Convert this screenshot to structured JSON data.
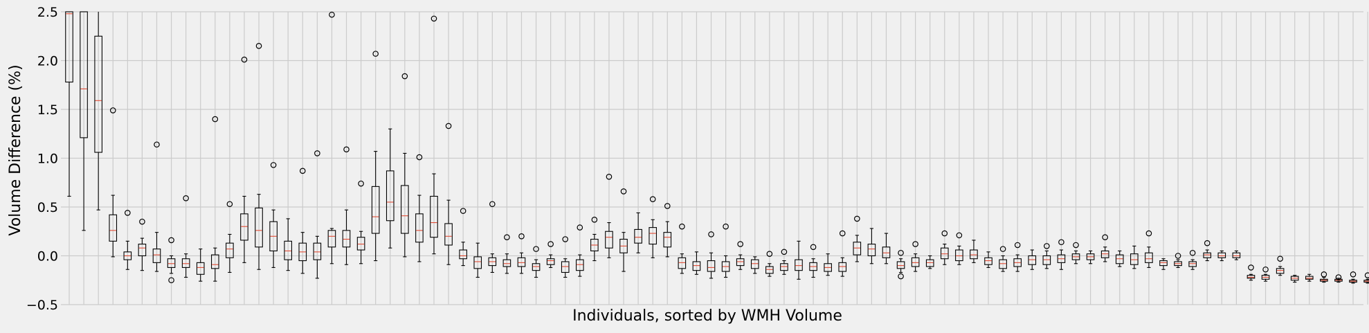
{
  "chart_data": {
    "type": "boxplot",
    "title": "",
    "xlabel": "Individuals, sorted by WMH Volume",
    "ylabel": "Volume Difference (%)",
    "ylim": [
      -0.5,
      2.5
    ],
    "yticks": [
      -0.5,
      0.0,
      0.5,
      1.0,
      1.5,
      2.0,
      2.5
    ],
    "ytick_labels": [
      "−0.5",
      "0.0",
      "0.5",
      "1.0",
      "1.5",
      "2.0",
      "2.5"
    ],
    "grid": true,
    "xtick_labels_shown": false,
    "colors": {
      "background": "#f0f0f0",
      "grid": "#cbcbcb",
      "box": "#000000",
      "median": "#e24a33"
    },
    "boxes": [
      {
        "q1": 1.78,
        "med": 2.48,
        "q3": 2.6,
        "wlo": 0.61,
        "whi": 2.6,
        "fl": []
      },
      {
        "q1": 1.21,
        "med": 1.71,
        "q3": 2.6,
        "wlo": 0.26,
        "whi": 2.6,
        "fl": []
      },
      {
        "q1": 1.06,
        "med": 1.59,
        "q3": 2.25,
        "wlo": 0.47,
        "whi": 2.6,
        "fl": []
      },
      {
        "q1": 0.15,
        "med": 0.26,
        "q3": 0.42,
        "wlo": -0.01,
        "whi": 0.62,
        "fl": [
          1.49
        ]
      },
      {
        "q1": -0.04,
        "med": 0.0,
        "q3": 0.04,
        "wlo": -0.14,
        "whi": 0.15,
        "fl": [
          0.44
        ]
      },
      {
        "q1": 0.0,
        "med": 0.08,
        "q3": 0.12,
        "wlo": -0.15,
        "whi": 0.18,
        "fl": [
          0.35
        ]
      },
      {
        "q1": -0.07,
        "med": 0.01,
        "q3": 0.07,
        "wlo": -0.16,
        "whi": 0.24,
        "fl": [
          1.14
        ]
      },
      {
        "q1": -0.12,
        "med": -0.08,
        "q3": -0.03,
        "wlo": -0.18,
        "whi": 0.0,
        "fl": [
          0.16,
          -0.25
        ]
      },
      {
        "q1": -0.12,
        "med": -0.08,
        "q3": -0.03,
        "wlo": -0.22,
        "whi": 0.02,
        "fl": [
          0.59
        ]
      },
      {
        "q1": -0.19,
        "med": -0.12,
        "q3": -0.07,
        "wlo": -0.26,
        "whi": 0.07,
        "fl": []
      },
      {
        "q1": -0.13,
        "med": -0.09,
        "q3": 0.01,
        "wlo": -0.26,
        "whi": 0.08,
        "fl": [
          1.4
        ]
      },
      {
        "q1": -0.02,
        "med": 0.07,
        "q3": 0.13,
        "wlo": -0.17,
        "whi": 0.22,
        "fl": [
          0.53
        ]
      },
      {
        "q1": 0.16,
        "med": 0.3,
        "q3": 0.43,
        "wlo": -0.07,
        "whi": 0.61,
        "fl": [
          2.01
        ]
      },
      {
        "q1": 0.09,
        "med": 0.26,
        "q3": 0.49,
        "wlo": -0.14,
        "whi": 0.63,
        "fl": [
          2.15
        ]
      },
      {
        "q1": 0.05,
        "med": 0.2,
        "q3": 0.35,
        "wlo": -0.12,
        "whi": 0.47,
        "fl": [
          0.93
        ]
      },
      {
        "q1": -0.04,
        "med": 0.05,
        "q3": 0.15,
        "wlo": -0.15,
        "whi": 0.38,
        "fl": []
      },
      {
        "q1": -0.05,
        "med": 0.04,
        "q3": 0.13,
        "wlo": -0.18,
        "whi": 0.24,
        "fl": [
          0.87
        ]
      },
      {
        "q1": -0.04,
        "med": 0.04,
        "q3": 0.13,
        "wlo": -0.23,
        "whi": 0.2,
        "fl": [
          1.05
        ]
      },
      {
        "q1": 0.09,
        "med": 0.2,
        "q3": 0.26,
        "wlo": -0.08,
        "whi": 0.28,
        "fl": [
          2.47
        ]
      },
      {
        "q1": 0.09,
        "med": 0.17,
        "q3": 0.26,
        "wlo": -0.09,
        "whi": 0.47,
        "fl": [
          1.09
        ]
      },
      {
        "q1": 0.06,
        "med": 0.12,
        "q3": 0.19,
        "wlo": -0.08,
        "whi": 0.25,
        "fl": [
          0.74
        ]
      },
      {
        "q1": 0.23,
        "med": 0.4,
        "q3": 0.71,
        "wlo": -0.05,
        "whi": 1.07,
        "fl": [
          2.07
        ]
      },
      {
        "q1": 0.36,
        "med": 0.55,
        "q3": 0.87,
        "wlo": 0.08,
        "whi": 1.3,
        "fl": []
      },
      {
        "q1": 0.23,
        "med": 0.41,
        "q3": 0.72,
        "wlo": -0.01,
        "whi": 1.05,
        "fl": [
          1.84
        ]
      },
      {
        "q1": 0.14,
        "med": 0.26,
        "q3": 0.43,
        "wlo": -0.06,
        "whi": 0.62,
        "fl": [
          1.01
        ]
      },
      {
        "q1": 0.19,
        "med": 0.34,
        "q3": 0.61,
        "wlo": 0.02,
        "whi": 0.84,
        "fl": [
          2.43
        ]
      },
      {
        "q1": 0.11,
        "med": 0.2,
        "q3": 0.33,
        "wlo": -0.09,
        "whi": 0.57,
        "fl": [
          1.33
        ]
      },
      {
        "q1": -0.03,
        "med": 0.0,
        "q3": 0.06,
        "wlo": -0.1,
        "whi": 0.14,
        "fl": [
          0.46
        ]
      },
      {
        "q1": -0.13,
        "med": -0.06,
        "q3": -0.01,
        "wlo": -0.22,
        "whi": 0.13,
        "fl": []
      },
      {
        "q1": -0.1,
        "med": -0.06,
        "q3": -0.02,
        "wlo": -0.17,
        "whi": 0.02,
        "fl": [
          0.53
        ]
      },
      {
        "q1": -0.11,
        "med": -0.08,
        "q3": -0.04,
        "wlo": -0.18,
        "whi": 0.02,
        "fl": [
          0.19
        ]
      },
      {
        "q1": -0.11,
        "med": -0.07,
        "q3": -0.02,
        "wlo": -0.18,
        "whi": 0.03,
        "fl": [
          0.2
        ]
      },
      {
        "q1": -0.15,
        "med": -0.11,
        "q3": -0.08,
        "wlo": -0.22,
        "whi": -0.04,
        "fl": [
          0.07
        ]
      },
      {
        "q1": -0.09,
        "med": -0.05,
        "q3": -0.03,
        "wlo": -0.12,
        "whi": 0.01,
        "fl": [
          0.12
        ]
      },
      {
        "q1": -0.17,
        "med": -0.11,
        "q3": -0.06,
        "wlo": -0.22,
        "whi": -0.03,
        "fl": [
          0.17
        ]
      },
      {
        "q1": -0.15,
        "med": -0.09,
        "q3": -0.04,
        "wlo": -0.21,
        "whi": 0.01,
        "fl": [
          0.29
        ]
      },
      {
        "q1": 0.05,
        "med": 0.11,
        "q3": 0.17,
        "wlo": -0.05,
        "whi": 0.22,
        "fl": [
          0.37
        ]
      },
      {
        "q1": 0.08,
        "med": 0.19,
        "q3": 0.25,
        "wlo": -0.02,
        "whi": 0.34,
        "fl": [
          0.81
        ]
      },
      {
        "q1": 0.03,
        "med": 0.1,
        "q3": 0.17,
        "wlo": -0.16,
        "whi": 0.24,
        "fl": [
          0.66
        ]
      },
      {
        "q1": 0.13,
        "med": 0.19,
        "q3": 0.27,
        "wlo": 0.03,
        "whi": 0.44,
        "fl": []
      },
      {
        "q1": 0.12,
        "med": 0.23,
        "q3": 0.29,
        "wlo": -0.02,
        "whi": 0.37,
        "fl": [
          0.58
        ]
      },
      {
        "q1": 0.09,
        "med": 0.19,
        "q3": 0.24,
        "wlo": -0.01,
        "whi": 0.35,
        "fl": [
          0.51
        ]
      },
      {
        "q1": -0.13,
        "med": -0.07,
        "q3": -0.02,
        "wlo": -0.18,
        "whi": 0.02,
        "fl": [
          0.3
        ]
      },
      {
        "q1": -0.15,
        "med": -0.1,
        "q3": -0.06,
        "wlo": -0.19,
        "whi": 0.04,
        "fl": []
      },
      {
        "q1": -0.16,
        "med": -0.12,
        "q3": -0.05,
        "wlo": -0.23,
        "whi": 0.03,
        "fl": [
          0.22
        ]
      },
      {
        "q1": -0.16,
        "med": -0.11,
        "q3": -0.06,
        "wlo": -0.22,
        "whi": 0.0,
        "fl": [
          0.3
        ]
      },
      {
        "q1": -0.1,
        "med": -0.06,
        "q3": -0.03,
        "wlo": -0.14,
        "whi": 0.01,
        "fl": [
          0.12
        ]
      },
      {
        "q1": -0.13,
        "med": -0.08,
        "q3": -0.04,
        "wlo": -0.18,
        "whi": -0.01,
        "fl": []
      },
      {
        "q1": -0.18,
        "med": -0.14,
        "q3": -0.11,
        "wlo": -0.21,
        "whi": -0.08,
        "fl": [
          0.02
        ]
      },
      {
        "q1": -0.15,
        "med": -0.11,
        "q3": -0.08,
        "wlo": -0.19,
        "whi": -0.05,
        "fl": [
          0.04
        ]
      },
      {
        "q1": -0.15,
        "med": -0.1,
        "q3": -0.04,
        "wlo": -0.24,
        "whi": 0.15,
        "fl": []
      },
      {
        "q1": -0.15,
        "med": -0.11,
        "q3": -0.07,
        "wlo": -0.22,
        "whi": -0.03,
        "fl": [
          0.09
        ]
      },
      {
        "q1": -0.16,
        "med": -0.12,
        "q3": -0.08,
        "wlo": -0.2,
        "whi": 0.02,
        "fl": []
      },
      {
        "q1": -0.16,
        "med": -0.11,
        "q3": -0.07,
        "wlo": -0.21,
        "whi": -0.02,
        "fl": [
          0.23
        ]
      },
      {
        "q1": 0.01,
        "med": 0.08,
        "q3": 0.14,
        "wlo": -0.06,
        "whi": 0.21,
        "fl": [
          0.38
        ]
      },
      {
        "q1": 0.0,
        "med": 0.07,
        "q3": 0.12,
        "wlo": -0.08,
        "whi": 0.28,
        "fl": []
      },
      {
        "q1": -0.02,
        "med": 0.03,
        "q3": 0.09,
        "wlo": -0.08,
        "whi": 0.23,
        "fl": []
      },
      {
        "q1": -0.13,
        "med": -0.1,
        "q3": -0.06,
        "wlo": -0.17,
        "whi": -0.03,
        "fl": [
          0.03,
          -0.21
        ]
      },
      {
        "q1": -0.11,
        "med": -0.07,
        "q3": -0.02,
        "wlo": -0.16,
        "whi": 0.02,
        "fl": [
          0.12
        ]
      },
      {
        "q1": -0.11,
        "med": -0.07,
        "q3": -0.04,
        "wlo": -0.13,
        "whi": 0.0,
        "fl": []
      },
      {
        "q1": -0.03,
        "med": 0.02,
        "q3": 0.08,
        "wlo": -0.09,
        "whi": 0.12,
        "fl": [
          0.23
        ]
      },
      {
        "q1": -0.05,
        "med": 0.0,
        "q3": 0.06,
        "wlo": -0.09,
        "whi": 0.1,
        "fl": [
          0.21
        ]
      },
      {
        "q1": -0.03,
        "med": 0.01,
        "q3": 0.06,
        "wlo": -0.07,
        "whi": 0.16,
        "fl": []
      },
      {
        "q1": -0.09,
        "med": -0.05,
        "q3": -0.02,
        "wlo": -0.12,
        "whi": 0.04,
        "fl": []
      },
      {
        "q1": -0.13,
        "med": -0.08,
        "q3": -0.04,
        "wlo": -0.16,
        "whi": 0.0,
        "fl": [
          0.07
        ]
      },
      {
        "q1": -0.11,
        "med": -0.07,
        "q3": -0.03,
        "wlo": -0.16,
        "whi": 0.01,
        "fl": [
          0.11
        ]
      },
      {
        "q1": -0.09,
        "med": -0.04,
        "q3": 0.0,
        "wlo": -0.14,
        "whi": 0.06,
        "fl": []
      },
      {
        "q1": -0.09,
        "med": -0.04,
        "q3": 0.0,
        "wlo": -0.13,
        "whi": 0.05,
        "fl": [
          0.1
        ]
      },
      {
        "q1": -0.07,
        "med": -0.03,
        "q3": 0.01,
        "wlo": -0.14,
        "whi": 0.06,
        "fl": [
          0.14
        ]
      },
      {
        "q1": -0.04,
        "med": -0.01,
        "q3": 0.02,
        "wlo": -0.08,
        "whi": 0.05,
        "fl": [
          0.11
        ]
      },
      {
        "q1": -0.04,
        "med": -0.01,
        "q3": 0.02,
        "wlo": -0.08,
        "whi": 0.05,
        "fl": []
      },
      {
        "q1": -0.02,
        "med": 0.02,
        "q3": 0.05,
        "wlo": -0.06,
        "whi": 0.09,
        "fl": [
          0.19
        ]
      },
      {
        "q1": -0.08,
        "med": -0.03,
        "q3": 0.01,
        "wlo": -0.11,
        "whi": 0.05,
        "fl": []
      },
      {
        "q1": -0.09,
        "med": -0.04,
        "q3": 0.02,
        "wlo": -0.13,
        "whi": 0.1,
        "fl": []
      },
      {
        "q1": -0.07,
        "med": -0.03,
        "q3": 0.03,
        "wlo": -0.12,
        "whi": 0.09,
        "fl": [
          0.23
        ]
      },
      {
        "q1": -0.1,
        "med": -0.07,
        "q3": -0.05,
        "wlo": -0.14,
        "whi": -0.03,
        "fl": []
      },
      {
        "q1": -0.1,
        "med": -0.08,
        "q3": -0.06,
        "wlo": -0.12,
        "whi": -0.04,
        "fl": [
          0.0
        ]
      },
      {
        "q1": -0.11,
        "med": -0.08,
        "q3": -0.06,
        "wlo": -0.14,
        "whi": -0.04,
        "fl": [
          0.03
        ]
      },
      {
        "q1": -0.02,
        "med": 0.01,
        "q3": 0.03,
        "wlo": -0.05,
        "whi": 0.06,
        "fl": [
          0.13
        ]
      },
      {
        "q1": -0.02,
        "med": 0.0,
        "q3": 0.03,
        "wlo": -0.05,
        "whi": 0.05,
        "fl": []
      },
      {
        "q1": -0.02,
        "med": 0.0,
        "q3": 0.03,
        "wlo": -0.04,
        "whi": 0.05,
        "fl": []
      },
      {
        "q1": -0.23,
        "med": -0.22,
        "q3": -0.2,
        "wlo": -0.25,
        "whi": -0.19,
        "fl": [
          -0.12
        ]
      },
      {
        "q1": -0.24,
        "med": -0.22,
        "q3": -0.2,
        "wlo": -0.26,
        "whi": -0.19,
        "fl": [
          -0.14
        ]
      },
      {
        "q1": -0.18,
        "med": -0.15,
        "q3": -0.13,
        "wlo": -0.2,
        "whi": -0.11,
        "fl": [
          -0.03
        ]
      },
      {
        "q1": -0.25,
        "med": -0.23,
        "q3": -0.21,
        "wlo": -0.27,
        "whi": -0.2,
        "fl": []
      },
      {
        "q1": -0.24,
        "med": -0.23,
        "q3": -0.21,
        "wlo": -0.26,
        "whi": -0.19,
        "fl": []
      },
      {
        "q1": -0.26,
        "med": -0.25,
        "q3": -0.24,
        "wlo": -0.27,
        "whi": -0.22,
        "fl": [
          -0.19
        ]
      },
      {
        "q1": -0.26,
        "med": -0.25,
        "q3": -0.24,
        "wlo": -0.27,
        "whi": -0.23,
        "fl": [
          -0.22
        ]
      },
      {
        "q1": -0.27,
        "med": -0.26,
        "q3": -0.25,
        "wlo": -0.28,
        "whi": -0.24,
        "fl": [
          -0.19
        ]
      },
      {
        "q1": -0.27,
        "med": -0.26,
        "q3": -0.25,
        "wlo": -0.28,
        "whi": -0.24,
        "fl": [
          -0.2
        ]
      }
    ]
  }
}
